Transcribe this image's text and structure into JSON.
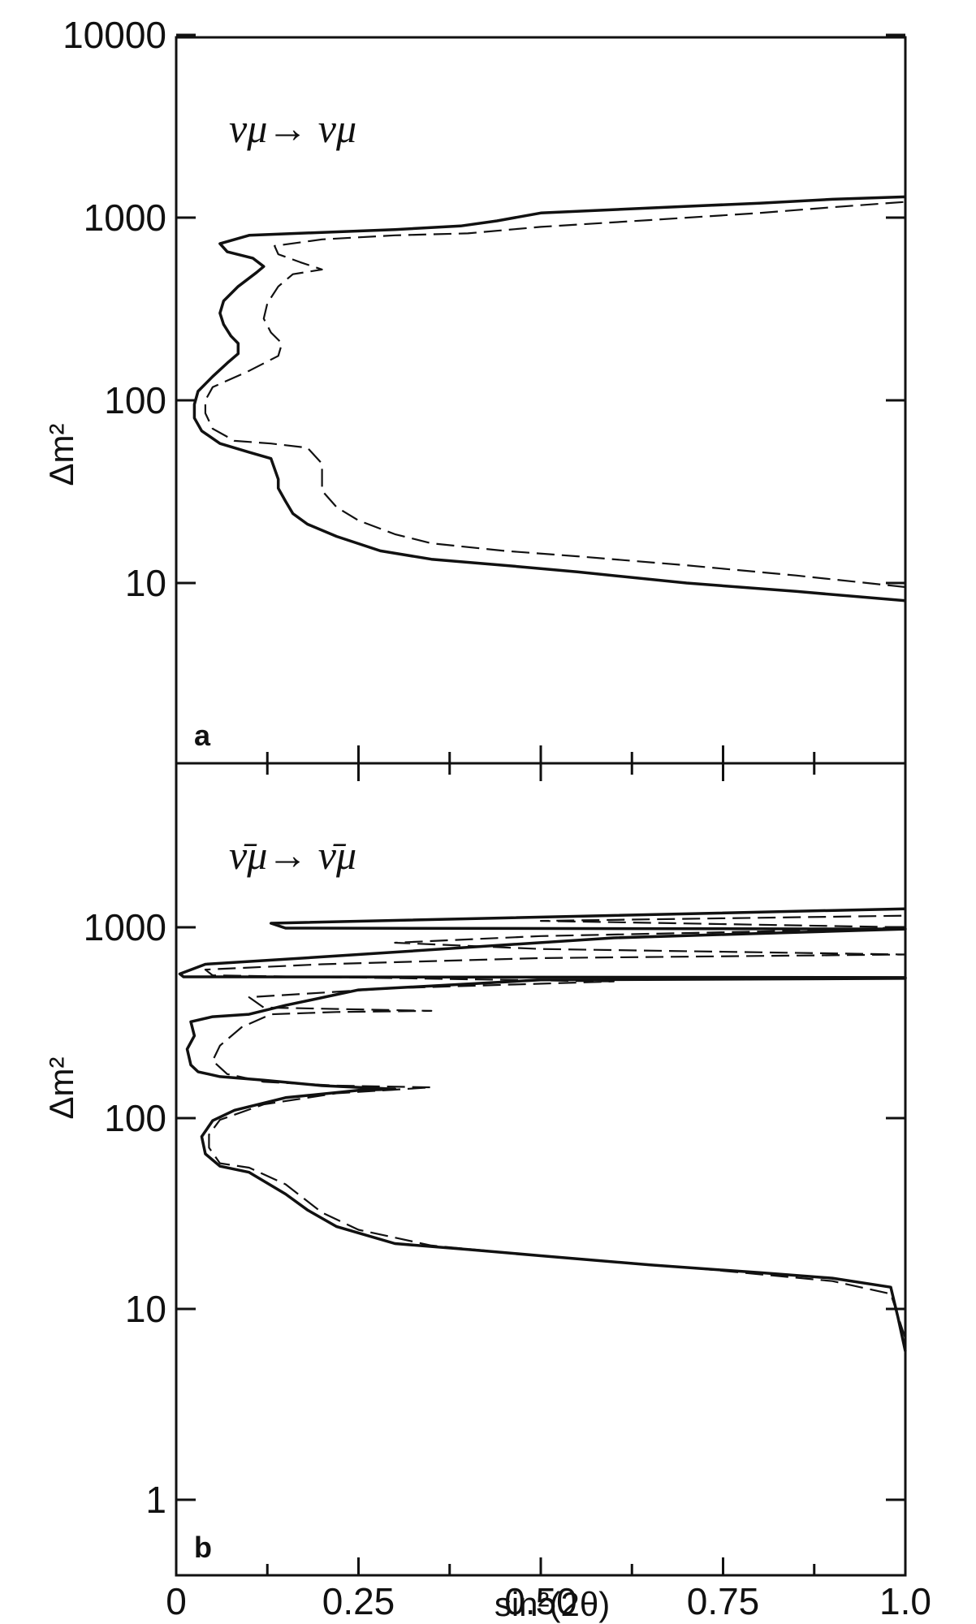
{
  "chart_data": [
    {
      "type": "line",
      "panel_label": "a",
      "annotation": "νμ→ νμ",
      "xlabel": "",
      "ylabel": "Δm²",
      "x_scale": "linear",
      "y_scale": "log",
      "xlim": [
        0,
        1.0
      ],
      "ylim": [
        1,
        10000
      ],
      "y_ticks": [
        10,
        100,
        1000,
        10000
      ],
      "y_tick_labels": [
        "10",
        "100",
        "1000",
        "10000"
      ],
      "series": [
        {
          "style": "solid",
          "points": [
            [
              1.0,
              8
            ],
            [
              0.85,
              9
            ],
            [
              0.7,
              10
            ],
            [
              0.55,
              11.5
            ],
            [
              0.45,
              12.5
            ],
            [
              0.35,
              13.5
            ],
            [
              0.28,
              15
            ],
            [
              0.22,
              18
            ],
            [
              0.18,
              21
            ],
            [
              0.16,
              24
            ],
            [
              0.15,
              28
            ],
            [
              0.14,
              33
            ],
            [
              0.14,
              37
            ],
            [
              0.13,
              48
            ],
            [
              0.1,
              52
            ],
            [
              0.06,
              58
            ],
            [
              0.035,
              68
            ],
            [
              0.025,
              80
            ],
            [
              0.025,
              95
            ],
            [
              0.03,
              112
            ],
            [
              0.05,
              135
            ],
            [
              0.07,
              160
            ],
            [
              0.085,
              180
            ],
            [
              0.085,
              205
            ],
            [
              0.075,
              225
            ],
            [
              0.065,
              260
            ],
            [
              0.06,
              300
            ],
            [
              0.065,
              350
            ],
            [
              0.085,
              420
            ],
            [
              0.11,
              500
            ],
            [
              0.12,
              540
            ],
            [
              0.105,
              600
            ],
            [
              0.07,
              650
            ],
            [
              0.06,
              720
            ],
            [
              0.1,
              800
            ],
            [
              0.2,
              830
            ],
            [
              0.3,
              860
            ],
            [
              0.39,
              900
            ],
            [
              0.44,
              960
            ],
            [
              0.5,
              1060
            ],
            [
              0.65,
              1130
            ],
            [
              0.8,
              1200
            ],
            [
              0.9,
              1260
            ],
            [
              1.0,
              1300
            ]
          ]
        },
        {
          "style": "dashed",
          "points": [
            [
              1.0,
              9.5
            ],
            [
              0.85,
              11
            ],
            [
              0.7,
              12.5
            ],
            [
              0.55,
              14
            ],
            [
              0.45,
              15
            ],
            [
              0.35,
              16.5
            ],
            [
              0.3,
              18.5
            ],
            [
              0.25,
              22
            ],
            [
              0.22,
              26
            ],
            [
              0.2,
              32
            ],
            [
              0.2,
              45
            ],
            [
              0.18,
              55
            ],
            [
              0.13,
              58
            ],
            [
              0.08,
              60
            ],
            [
              0.05,
              70
            ],
            [
              0.04,
              85
            ],
            [
              0.04,
              100
            ],
            [
              0.05,
              118
            ],
            [
              0.1,
              145
            ],
            [
              0.14,
              175
            ],
            [
              0.145,
              205
            ],
            [
              0.13,
              235
            ],
            [
              0.12,
              280
            ],
            [
              0.125,
              340
            ],
            [
              0.14,
              420
            ],
            [
              0.16,
              490
            ],
            [
              0.2,
              520
            ],
            [
              0.17,
              570
            ],
            [
              0.14,
              630
            ],
            [
              0.135,
              700
            ],
            [
              0.2,
              760
            ],
            [
              0.3,
              800
            ],
            [
              0.4,
              820
            ],
            [
              0.5,
              890
            ],
            [
              0.65,
              970
            ],
            [
              0.8,
              1060
            ],
            [
              0.9,
              1140
            ],
            [
              1.0,
              1220
            ]
          ]
        }
      ]
    },
    {
      "type": "line",
      "panel_label": "b",
      "annotation": "ν̄μ→ ν̄μ",
      "xlabel": "sin²(2θ)",
      "ylabel": "Δm²",
      "x_scale": "linear",
      "y_scale": "log",
      "xlim": [
        0,
        1.0
      ],
      "ylim": [
        1,
        10000
      ],
      "x_ticks": [
        0,
        0.25,
        0.5,
        0.75,
        1.0
      ],
      "x_tick_labels": [
        "0",
        "0.25",
        "0.50",
        "0.75",
        "1.0"
      ],
      "y_ticks": [
        1,
        10,
        100,
        1000
      ],
      "y_tick_labels": [
        "1",
        "10",
        "100",
        "1000"
      ],
      "series": [
        {
          "style": "solid",
          "points": [
            [
              1.0,
              6
            ],
            [
              0.99,
              9
            ],
            [
              0.98,
              13
            ],
            [
              0.9,
              14.5
            ],
            [
              0.8,
              15.5
            ],
            [
              0.65,
              17
            ],
            [
              0.5,
              19
            ],
            [
              0.4,
              20.5
            ],
            [
              0.3,
              22
            ],
            [
              0.22,
              27
            ],
            [
              0.18,
              33
            ],
            [
              0.15,
              40
            ],
            [
              0.1,
              52
            ],
            [
              0.06,
              56
            ],
            [
              0.04,
              65
            ],
            [
              0.035,
              80
            ],
            [
              0.05,
              97
            ],
            [
              0.08,
              110
            ],
            [
              0.15,
              128
            ],
            [
              0.25,
              140
            ],
            [
              0.3,
              142
            ],
            [
              0.2,
              148
            ],
            [
              0.12,
              158
            ],
            [
              0.06,
              165
            ],
            [
              0.03,
              175
            ],
            [
              0.02,
              190
            ],
            [
              0.015,
              230
            ],
            [
              0.025,
              270
            ],
            [
              0.02,
              320
            ],
            [
              0.05,
              340
            ],
            [
              0.1,
              350
            ],
            [
              0.15,
              390
            ],
            [
              0.25,
              470
            ],
            [
              0.5,
              530
            ],
            [
              1.0,
              540
            ],
            [
              1.0,
              545
            ],
            [
              0.01,
              550
            ],
            [
              0.005,
              570
            ],
            [
              0.04,
              640
            ],
            [
              0.2,
              700
            ],
            [
              0.6,
              880
            ],
            [
              1.0,
              980
            ],
            [
              0.15,
              990
            ],
            [
              0.13,
              1050
            ],
            [
              1.0,
              1250
            ]
          ]
        },
        {
          "style": "dashed",
          "points": [
            [
              1.0,
              7
            ],
            [
              0.98,
              12
            ],
            [
              0.9,
              14
            ],
            [
              0.7,
              16.5
            ],
            [
              0.5,
              19
            ],
            [
              0.35,
              21.5
            ],
            [
              0.25,
              26
            ],
            [
              0.2,
              32
            ],
            [
              0.15,
              45
            ],
            [
              0.1,
              55
            ],
            [
              0.06,
              58
            ],
            [
              0.045,
              70
            ],
            [
              0.045,
              82
            ],
            [
              0.06,
              98
            ],
            [
              0.12,
              118
            ],
            [
              0.22,
              135
            ],
            [
              0.35,
              145
            ],
            [
              0.22,
              148
            ],
            [
              0.12,
              155
            ],
            [
              0.07,
              170
            ],
            [
              0.05,
              200
            ],
            [
              0.06,
              240
            ],
            [
              0.09,
              300
            ],
            [
              0.13,
              350
            ],
            [
              0.22,
              360
            ],
            [
              0.35,
              365
            ],
            [
              0.12,
              380
            ],
            [
              0.1,
              430
            ],
            [
              0.3,
              480
            ],
            [
              0.6,
              520
            ],
            [
              0.05,
              560
            ],
            [
              0.04,
              600
            ],
            [
              0.2,
              640
            ],
            [
              0.5,
              690
            ],
            [
              1.0,
              720
            ],
            [
              0.5,
              770
            ],
            [
              0.3,
              830
            ],
            [
              0.5,
              900
            ],
            [
              0.8,
              950
            ],
            [
              1.0,
              1000
            ],
            [
              0.5,
              1080
            ],
            [
              1.0,
              1150
            ]
          ]
        }
      ]
    }
  ]
}
